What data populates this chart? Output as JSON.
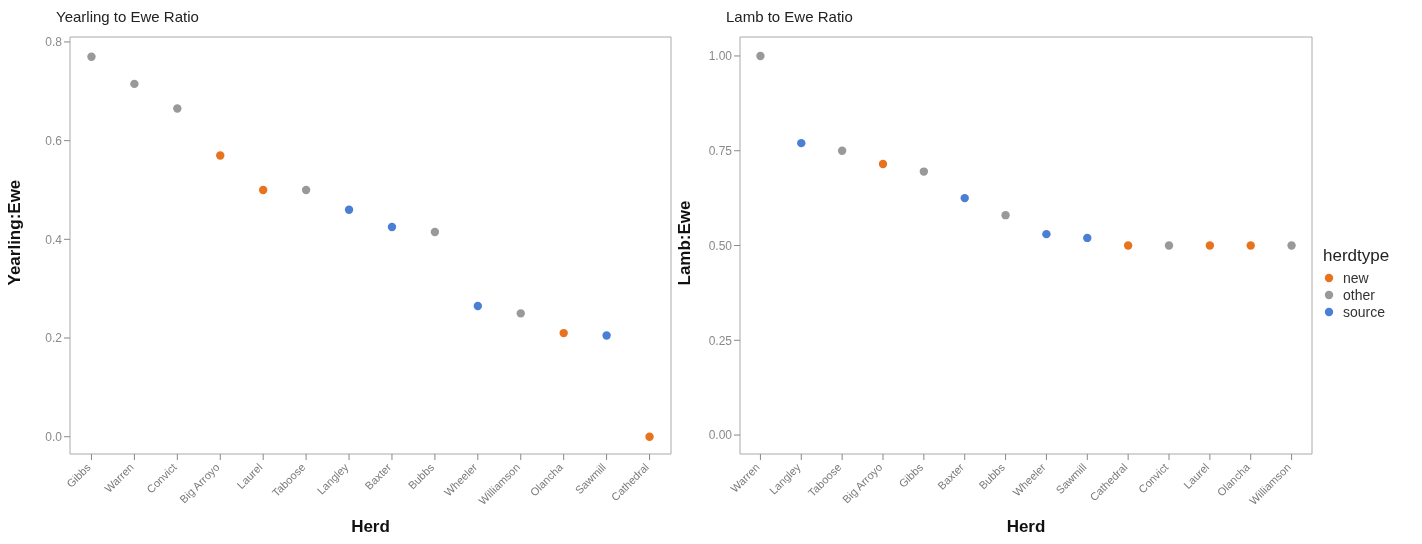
{
  "chart_data": [
    {
      "type": "scatter",
      "title": "Yearling to Ewe Ratio",
      "xlabel": "Herd",
      "ylabel": "Yearling:Ewe",
      "categories": [
        "Gibbs",
        "Warren",
        "Convict",
        "Big Arroyo",
        "Laurel",
        "Taboose",
        "Langley",
        "Baxter",
        "Bubbs",
        "Wheeler",
        "Williamson",
        "Olancha",
        "Sawmill",
        "Cathedral"
      ],
      "values": [
        0.77,
        0.715,
        0.665,
        0.57,
        0.5,
        0.5,
        0.46,
        0.425,
        0.415,
        0.265,
        0.25,
        0.21,
        0.205,
        0
      ],
      "colors": [
        "#999999",
        "#999999",
        "#999999",
        "#e8731f",
        "#e8731f",
        "#999999",
        "#4a7fd4",
        "#4a7fd4",
        "#999999",
        "#4a7fd4",
        "#999999",
        "#e8731f",
        "#4a7fd4",
        "#e8731f"
      ],
      "ylim": [
        -0.035,
        0.81
      ],
      "yticks": [
        {
          "value": 0,
          "label": "0.0"
        },
        0.2,
        0.4,
        0.6,
        0.8
      ],
      "marker": "circle",
      "grid": false
    },
    {
      "type": "scatter",
      "title": "Lamb to Ewe Ratio",
      "xlabel": "Herd",
      "ylabel": "Lamb:Ewe",
      "legend_title": "herdtype",
      "legend": "right",
      "categories": [
        "Warren",
        "Langley",
        "Taboose",
        "Big Arroyo",
        "Gibbs",
        "Baxter",
        "Bubbs",
        "Wheeler",
        "Sawmill",
        "Cathedral",
        "Convict",
        "Laurel",
        "Olancha",
        "Williamson"
      ],
      "series": [
        {
          "name": "new",
          "color": "#e8731f",
          "values": [
            null,
            null,
            null,
            0.715,
            null,
            null,
            null,
            null,
            null,
            0.5,
            null,
            0.5,
            0.5,
            null
          ]
        },
        {
          "name": "other",
          "color": "#999999",
          "values": [
            1.0,
            null,
            0.75,
            null,
            0.695,
            null,
            0.58,
            null,
            null,
            null,
            0.5,
            null,
            null,
            0.5
          ]
        },
        {
          "name": "source",
          "color": "#4a7fd4",
          "values": [
            null,
            0.77,
            null,
            null,
            null,
            0.625,
            null,
            0.53,
            0.52,
            null,
            null,
            null,
            null,
            null
          ]
        }
      ],
      "ylim": [
        -0.05,
        1.05
      ],
      "yticks": [
        {
          "value": 0,
          "label": "0.00"
        },
        {
          "value": 0.25,
          "label": "0.25"
        },
        {
          "value": 0.5,
          "label": "0.50"
        },
        {
          "value": 0.75,
          "label": "0.75"
        },
        {
          "value": 1,
          "label": "1.00"
        }
      ],
      "marker": "circle",
      "grid": false
    }
  ]
}
